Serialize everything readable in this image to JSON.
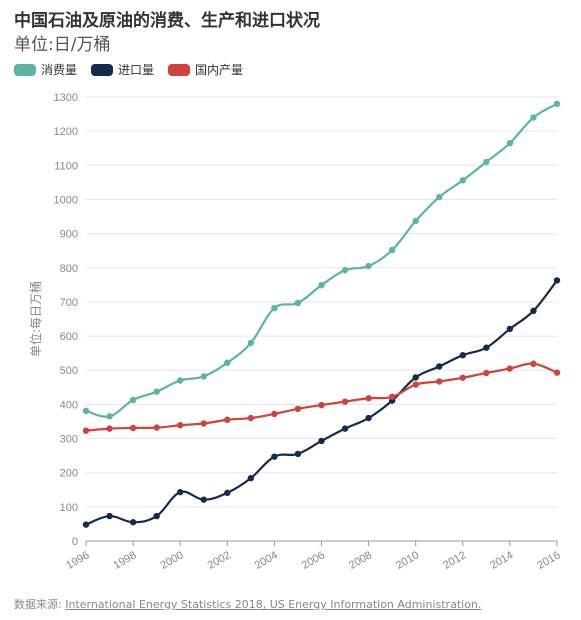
{
  "chart_data": {
    "type": "line",
    "title": "中国石油及原油的消费、生产和进口状况",
    "subtitle": "单位:日/万桶",
    "ylabel": "单位:每日万桶",
    "xlabel": "",
    "x": [
      1996,
      1997,
      1998,
      1999,
      2000,
      2001,
      2002,
      2003,
      2004,
      2005,
      2006,
      2007,
      2008,
      2009,
      2010,
      2011,
      2012,
      2013,
      2014,
      2015,
      2016
    ],
    "xlim": [
      1996,
      2016
    ],
    "ylim": [
      0,
      1300
    ],
    "xticks": [
      "1996",
      "1998",
      "2000",
      "2002",
      "2004",
      "2006",
      "2008",
      "2010",
      "2012",
      "2014",
      "2016"
    ],
    "yticks": [
      "0",
      "100",
      "200",
      "300",
      "400",
      "500",
      "600",
      "700",
      "800",
      "900",
      "1000",
      "1100",
      "1200",
      "1300"
    ],
    "grid": true,
    "legend_position": "top-left",
    "series": [
      {
        "name": "消费量",
        "color": "#5bb5a2",
        "values": [
          381,
          365,
          413,
          437,
          470,
          482,
          522,
          580,
          682,
          697,
          749,
          793,
          805,
          852,
          937,
          1007,
          1056,
          1110,
          1165,
          1240,
          1280
        ]
      },
      {
        "name": "进口量",
        "color": "#152b4d",
        "values": [
          48,
          73,
          55,
          73,
          143,
          121,
          141,
          184,
          247,
          255,
          293,
          329,
          360,
          411,
          479,
          511,
          544,
          566,
          621,
          674,
          763
        ]
      },
      {
        "name": "国内产量",
        "color": "#d0433d",
        "values": [
          323,
          329,
          331,
          332,
          339,
          344,
          355,
          360,
          372,
          387,
          398,
          408,
          418,
          422,
          458,
          467,
          478,
          492,
          505,
          519,
          493
        ]
      }
    ]
  },
  "footer": {
    "prefix": "数据来源:",
    "source": "International Energy Statistics 2018, US Energy Information Administration."
  }
}
